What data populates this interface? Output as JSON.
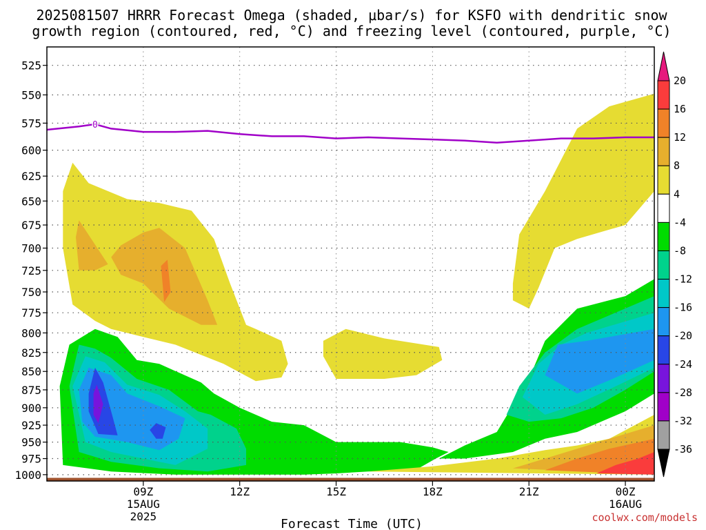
{
  "title_line1": "2025081507 HRRR Forecast Omega (shaded, μbar/s) for KSFO with dendritic snow",
  "title_line2": "growth region (contoured, red, °C) and freezing level (contoured, purple, °C)",
  "credit": "coolwx.com/models",
  "colors": {
    "freezing_level": "#a000c8",
    "ground": "#a0522d"
  },
  "chart_data": {
    "type": "heatmap",
    "title": "2025081507 HRRR Forecast Omega (shaded, μbar/s) for KSFO with dendritic snow growth region (contoured, red, °C) and freezing level (contoured, purple, °C)",
    "xlabel": "Forecast Time (UTC)",
    "ylabel": "",
    "xlim": [
      6,
      24.9
    ],
    "ylim": [
      1010,
      510
    ],
    "y_scale": "pressure (inverted)",
    "grid": true,
    "yticks": [
      525,
      550,
      575,
      600,
      625,
      650,
      675,
      700,
      725,
      750,
      775,
      800,
      825,
      850,
      875,
      900,
      925,
      950,
      975,
      1000
    ],
    "xticks": [
      {
        "x": 9,
        "label": "09Z",
        "sub1": "15AUG",
        "sub2": "2025"
      },
      {
        "x": 12,
        "label": "12Z",
        "sub1": "",
        "sub2": ""
      },
      {
        "x": 15,
        "label": "15Z",
        "sub1": "",
        "sub2": ""
      },
      {
        "x": 18,
        "label": "18Z",
        "sub1": "",
        "sub2": ""
      },
      {
        "x": 21,
        "label": "21Z",
        "sub1": "",
        "sub2": ""
      },
      {
        "x": 24,
        "label": "00Z",
        "sub1": "16AUG",
        "sub2": ""
      }
    ],
    "colorbar": {
      "labels": [
        20,
        16,
        12,
        8,
        4,
        -4,
        -8,
        -12,
        -16,
        -20,
        -24,
        -28,
        -32,
        -36
      ],
      "bins": [
        {
          "range": [
            16,
            20
          ],
          "color": "#fa3c3c"
        },
        {
          "range": [
            12,
            16
          ],
          "color": "#f08228"
        },
        {
          "range": [
            8,
            12
          ],
          "color": "#e6af2d"
        },
        {
          "range": [
            4,
            8
          ],
          "color": "#e6dc32"
        },
        {
          "range": [
            -4,
            4
          ],
          "color": "#ffffff"
        },
        {
          "range": [
            -8,
            -4
          ],
          "color": "#00dc00"
        },
        {
          "range": [
            -12,
            -8
          ],
          "color": "#00d28c"
        },
        {
          "range": [
            -16,
            -12
          ],
          "color": "#00c8c8"
        },
        {
          "range": [
            -20,
            -16
          ],
          "color": "#1e96f0"
        },
        {
          "range": [
            -24,
            -20
          ],
          "color": "#2846e6"
        },
        {
          "range": [
            -28,
            -24
          ],
          "color": "#7814dc"
        },
        {
          "range": [
            -32,
            -28
          ],
          "color": "#a000c8"
        },
        {
          "range": [
            -36,
            -32
          ],
          "color": "#a0a0a0"
        }
      ],
      "over_color": "#e6197d",
      "under_color": "#000000"
    },
    "freezing_level": {
      "label": "0",
      "x": [
        6,
        7,
        7.5,
        8,
        9,
        10,
        11,
        12,
        13,
        14,
        15,
        16,
        17,
        18,
        19,
        20,
        21,
        22,
        23,
        24,
        24.9
      ],
      "y": [
        581,
        578,
        576,
        580,
        583,
        583,
        582,
        585,
        587,
        587,
        589,
        588,
        589,
        590,
        591,
        593,
        591,
        589,
        589,
        588,
        588
      ]
    },
    "omega_regions": [
      {
        "value": 6,
        "polygon": [
          [
            6.5,
            640
          ],
          [
            6.8,
            612
          ],
          [
            7.3,
            632
          ],
          [
            8.5,
            648
          ],
          [
            9.5,
            652
          ],
          [
            10.5,
            660
          ],
          [
            11.2,
            690
          ],
          [
            11.7,
            740
          ],
          [
            12.2,
            790
          ],
          [
            12.5,
            795
          ],
          [
            13.3,
            810
          ],
          [
            13.5,
            840
          ],
          [
            13.3,
            858
          ],
          [
            12.5,
            863
          ],
          [
            11.5,
            840
          ],
          [
            10,
            815
          ],
          [
            9,
            805
          ],
          [
            8,
            795
          ],
          [
            7.5,
            785
          ],
          [
            6.8,
            765
          ],
          [
            6.5,
            700
          ]
        ]
      },
      {
        "value": 10,
        "polygon": [
          [
            6.9,
            688
          ],
          [
            7,
            670
          ],
          [
            7.9,
            718
          ],
          [
            7.5,
            725
          ],
          [
            7,
            725
          ]
        ]
      },
      {
        "value": 10,
        "polygon": [
          [
            8,
            710
          ],
          [
            8.3,
            697
          ],
          [
            9,
            683
          ],
          [
            9.5,
            678
          ],
          [
            10.3,
            700
          ],
          [
            11,
            760
          ],
          [
            11.3,
            790
          ],
          [
            10.8,
            790
          ],
          [
            9.8,
            770
          ],
          [
            9,
            740
          ],
          [
            8.3,
            730
          ]
        ]
      },
      {
        "value": 14,
        "polygon": [
          [
            9.55,
            720
          ],
          [
            9.75,
            713
          ],
          [
            9.85,
            750
          ],
          [
            9.65,
            762
          ],
          [
            9.6,
            740
          ]
        ]
      },
      {
        "value": 6,
        "polygon": [
          [
            14.6,
            810
          ],
          [
            15.3,
            795
          ],
          [
            16.5,
            807
          ],
          [
            18.2,
            818
          ],
          [
            18.3,
            835
          ],
          [
            17.5,
            855
          ],
          [
            16.5,
            860
          ],
          [
            15,
            860
          ],
          [
            14.6,
            830
          ]
        ]
      },
      {
        "value": 6,
        "polygon": [
          [
            20.5,
            740
          ],
          [
            20.7,
            685
          ],
          [
            21.5,
            640
          ],
          [
            22.5,
            580
          ],
          [
            23.5,
            560
          ],
          [
            24.9,
            549
          ],
          [
            24.9,
            640
          ],
          [
            24,
            675
          ],
          [
            22.5,
            690
          ],
          [
            21.8,
            700
          ],
          [
            21.3,
            745
          ],
          [
            21,
            770
          ],
          [
            20.5,
            760
          ]
        ]
      },
      {
        "value": -6,
        "polygon": [
          [
            6.4,
            870
          ],
          [
            6.7,
            815
          ],
          [
            7.5,
            795
          ],
          [
            8.2,
            805
          ],
          [
            8.8,
            835
          ],
          [
            9.5,
            840
          ],
          [
            10.8,
            865
          ],
          [
            11.2,
            880
          ],
          [
            12,
            900
          ],
          [
            13,
            920
          ],
          [
            14,
            925
          ],
          [
            15,
            950
          ],
          [
            17,
            950
          ],
          [
            18,
            958
          ],
          [
            18.5,
            965
          ],
          [
            18.1,
            975
          ],
          [
            17.5,
            992
          ],
          [
            16,
            995
          ],
          [
            15,
            998
          ],
          [
            14,
            1000
          ],
          [
            12,
            1000
          ],
          [
            10,
            1000
          ],
          [
            8,
            995
          ],
          [
            6.5,
            985
          ]
        ]
      },
      {
        "value": -6,
        "polygon": [
          [
            18.2,
            975
          ],
          [
            19,
            955
          ],
          [
            20,
            935
          ],
          [
            21,
            860
          ],
          [
            21.5,
            810
          ],
          [
            22.5,
            770
          ],
          [
            24,
            755
          ],
          [
            24.9,
            735
          ],
          [
            24.9,
            880
          ],
          [
            24,
            905
          ],
          [
            22.5,
            935
          ],
          [
            21.5,
            945
          ],
          [
            20.5,
            965
          ],
          [
            19,
            975
          ]
        ]
      },
      {
        "value": -10,
        "polygon": [
          [
            6.7,
            870
          ],
          [
            7,
            815
          ],
          [
            7.5,
            820
          ],
          [
            8,
            832
          ],
          [
            8.8,
            860
          ],
          [
            9.8,
            875
          ],
          [
            10.7,
            905
          ],
          [
            11.1,
            910
          ],
          [
            11.9,
            930
          ],
          [
            12.2,
            960
          ],
          [
            12.2,
            985
          ],
          [
            11,
            995
          ],
          [
            9.5,
            990
          ],
          [
            8,
            980
          ],
          [
            7,
            965
          ]
        ]
      },
      {
        "value": -10,
        "polygon": [
          [
            20.3,
            910
          ],
          [
            20.7,
            870
          ],
          [
            21.5,
            825
          ],
          [
            22.5,
            795
          ],
          [
            24.9,
            755
          ],
          [
            24.9,
            850
          ],
          [
            24,
            875
          ],
          [
            23,
            900
          ],
          [
            22,
            915
          ],
          [
            21,
            920
          ]
        ]
      },
      {
        "value": -14,
        "polygon": [
          [
            6.8,
            870
          ],
          [
            7.2,
            830
          ],
          [
            7.8,
            838
          ],
          [
            8.5,
            868
          ],
          [
            9.5,
            882
          ],
          [
            10.3,
            905
          ],
          [
            11,
            930
          ],
          [
            11,
            960
          ],
          [
            10,
            985
          ],
          [
            9,
            975
          ],
          [
            8,
            965
          ],
          [
            7.2,
            950
          ]
        ]
      },
      {
        "value": -14,
        "polygon": [
          [
            20.8,
            885
          ],
          [
            21.3,
            840
          ],
          [
            22,
            815
          ],
          [
            22.8,
            800
          ],
          [
            24.9,
            775
          ],
          [
            24.9,
            845
          ],
          [
            23.8,
            868
          ],
          [
            22.5,
            895
          ],
          [
            21.5,
            910
          ]
        ]
      },
      {
        "value": -18,
        "polygon": [
          [
            7,
            875
          ],
          [
            7.3,
            845
          ],
          [
            8,
            855
          ],
          [
            8.5,
            880
          ],
          [
            9.5,
            898
          ],
          [
            10.3,
            915
          ],
          [
            10.1,
            945
          ],
          [
            9.5,
            962
          ],
          [
            8.5,
            950
          ],
          [
            7.5,
            942
          ],
          [
            7.1,
            920
          ]
        ]
      },
      {
        "value": -18,
        "polygon": [
          [
            21.5,
            855
          ],
          [
            21.9,
            815
          ],
          [
            22.8,
            810
          ],
          [
            24.9,
            795
          ],
          [
            24.9,
            835
          ],
          [
            23.5,
            862
          ],
          [
            22.5,
            880
          ]
        ]
      },
      {
        "value": -22,
        "polygon": [
          [
            7.3,
            880
          ],
          [
            7.5,
            845
          ],
          [
            7.75,
            865
          ],
          [
            8,
            905
          ],
          [
            8.2,
            940
          ],
          [
            7.6,
            938
          ],
          [
            7.3,
            905
          ]
        ]
      },
      {
        "value": -22,
        "polygon": [
          [
            9.2,
            932
          ],
          [
            9.4,
            922
          ],
          [
            9.7,
            928
          ],
          [
            9.6,
            945
          ],
          [
            9.4,
            945
          ]
        ]
      },
      {
        "value": -26,
        "polygon": [
          [
            7.45,
            880
          ],
          [
            7.55,
            868
          ],
          [
            7.75,
            895
          ],
          [
            7.6,
            922
          ],
          [
            7.45,
            910
          ]
        ]
      },
      {
        "value": 6,
        "polygon": [
          [
            16,
            995
          ],
          [
            18,
            987
          ],
          [
            20,
            975
          ],
          [
            21.5,
            962
          ],
          [
            22.5,
            955
          ],
          [
            23.5,
            945
          ],
          [
            24.9,
            910
          ],
          [
            24.9,
            1000
          ]
        ]
      },
      {
        "value": 10,
        "polygon": [
          [
            20.5,
            990
          ],
          [
            21.5,
            975
          ],
          [
            22.5,
            960
          ],
          [
            23.5,
            945
          ],
          [
            24.9,
            925
          ],
          [
            24.9,
            1000
          ]
        ]
      },
      {
        "value": 14,
        "polygon": [
          [
            21.5,
            993
          ],
          [
            22.5,
            975
          ],
          [
            23.5,
            960
          ],
          [
            24.9,
            945
          ],
          [
            24.9,
            1000
          ]
        ]
      },
      {
        "value": 18,
        "polygon": [
          [
            23.1,
            998
          ],
          [
            23.7,
            985
          ],
          [
            24.4,
            975
          ],
          [
            24.9,
            965
          ],
          [
            24.9,
            1000
          ]
        ]
      }
    ],
    "ground": {
      "pressure": 1005
    }
  }
}
